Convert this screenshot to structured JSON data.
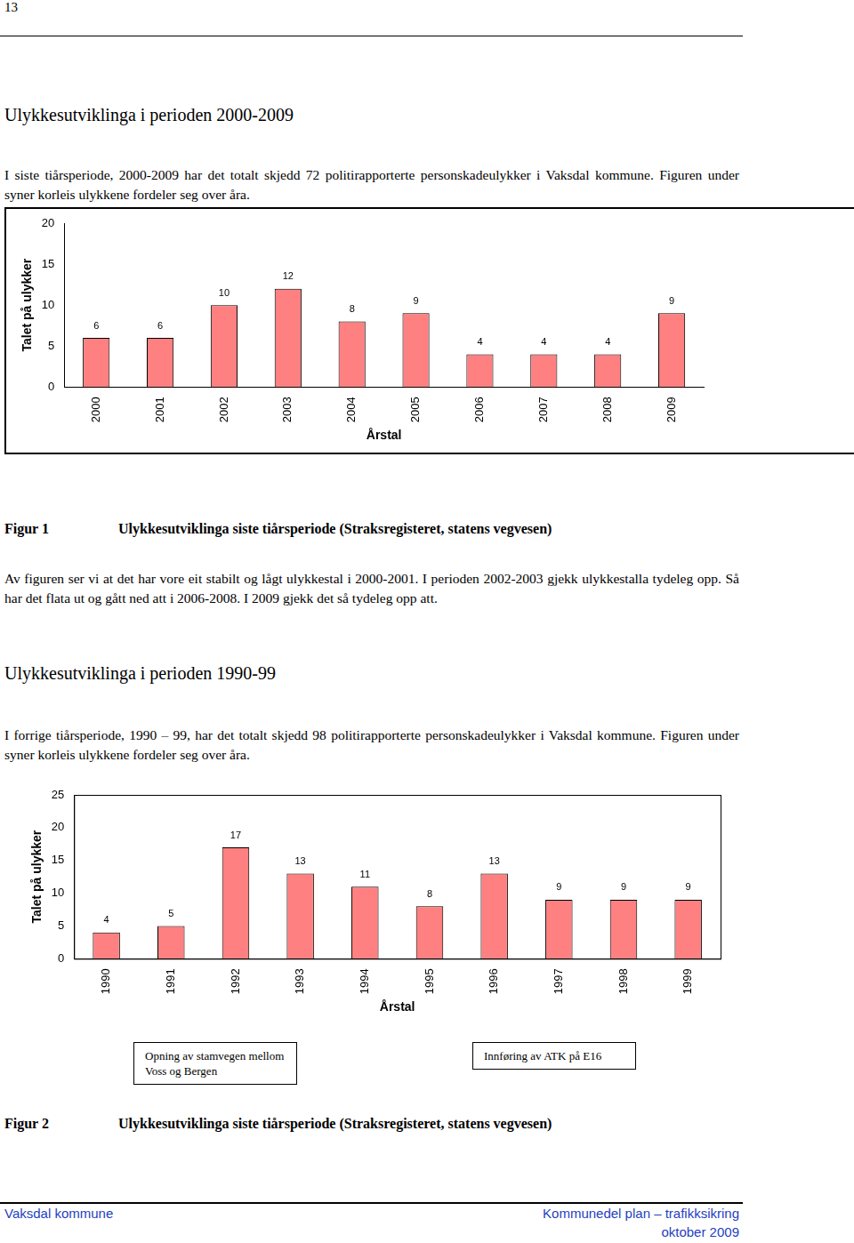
{
  "header": {
    "page_number": "13"
  },
  "sections": [
    {
      "heading": "Ulykkesutviklinga i perioden 2000-2009",
      "paragraphs": [
        "I siste tiårsperiode, 2000-2009 har det totalt skjedd 72 politirapporterte personskadeulykker i Vaksdal kommune. Figuren under syner korleis ulykkene fordeler seg over åra."
      ],
      "figure": {
        "label": "Figur 1",
        "caption": "Ulykkesutviklinga siste tiårsperiode (Straksregisteret, statens vegvesen)"
      },
      "after": [
        "Av figuren ser vi at det har vore eit stabilt og lågt ulykkestal i 2000-2001. I perioden 2002-2003 gjekk ulykkestalla tydeleg opp. Så har det flata ut og gått ned att i 2006-2008. I 2009 gjekk det så tydeleg opp att."
      ]
    },
    {
      "heading": "Ulykkesutviklinga i perioden 1990-99",
      "paragraphs": [
        "I forrige tiårsperiode, 1990 – 99, har det totalt skjedd 98 politirapporterte personskadeulykker i Vaksdal kommune. Figuren under syner korleis ulykkene fordeler seg over åra."
      ],
      "figure": {
        "label": "Figur 2",
        "caption": "Ulykkesutviklinga siste tiårsperiode (Straksregisteret, statens vegvesen)"
      },
      "after": []
    }
  ],
  "chart_data": [
    {
      "type": "bar",
      "x_label": "Årstal",
      "y_label": "Talet på ulykker",
      "categories": [
        "2000",
        "2001",
        "2002",
        "2003",
        "2004",
        "2005",
        "2006",
        "2007",
        "2008",
        "2009"
      ],
      "values": [
        6,
        6,
        10,
        12,
        8,
        9,
        4,
        4,
        4,
        9
      ],
      "color": "#ff8080",
      "ylim": [
        0,
        20
      ],
      "yticks": [
        0,
        5,
        10,
        15,
        20
      ],
      "grid": false,
      "data_labels": true
    },
    {
      "type": "bar",
      "x_label": "Årstal",
      "y_label": "Talet på ulykker",
      "categories": [
        "1990",
        "1991",
        "1992",
        "1993",
        "1994",
        "1995",
        "1996",
        "1997",
        "1998",
        "1999"
      ],
      "values": [
        4,
        5,
        17,
        13,
        11,
        8,
        13,
        9,
        9,
        9
      ],
      "color": "#ff8080",
      "ylim": [
        0,
        25
      ],
      "yticks": [
        0,
        5,
        10,
        15,
        20,
        25
      ],
      "grid": false,
      "data_labels": true,
      "annotations": [
        "Opning av stamvegen mellom  Voss og Bergen",
        "Innføring av ATK på E16"
      ]
    }
  ],
  "footer": {
    "left": "Vaksdal kommune",
    "right": "Kommunedel plan – trafikksikring",
    "date": "oktober 2009"
  }
}
